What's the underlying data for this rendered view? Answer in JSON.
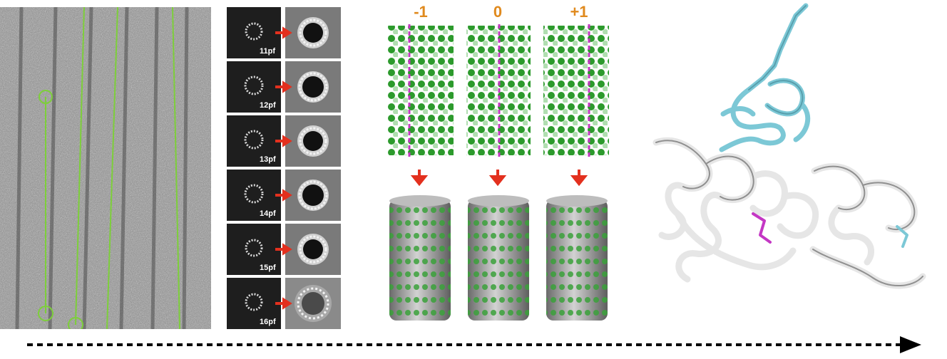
{
  "pf_classes": [
    "11pf",
    "12pf",
    "13pf",
    "14pf",
    "15pf",
    "16pf"
  ],
  "seam_registers": [
    "-1",
    "0",
    "+1"
  ],
  "colors": {
    "trace_green": "#7dcf3a",
    "arrow_red": "#e3301e",
    "seam_magenta": "#c437c4",
    "label_orange": "#e08a1e",
    "density_green": "#2c9a2c",
    "density_gray": "#b4b4b4",
    "ribbon_cyan": "#7cc8d6",
    "ribbon_white": "#e6e6e6"
  },
  "icons": [
    "red-arrow-icon",
    "down-arrow-icon",
    "timeline-arrowhead-icon"
  ]
}
